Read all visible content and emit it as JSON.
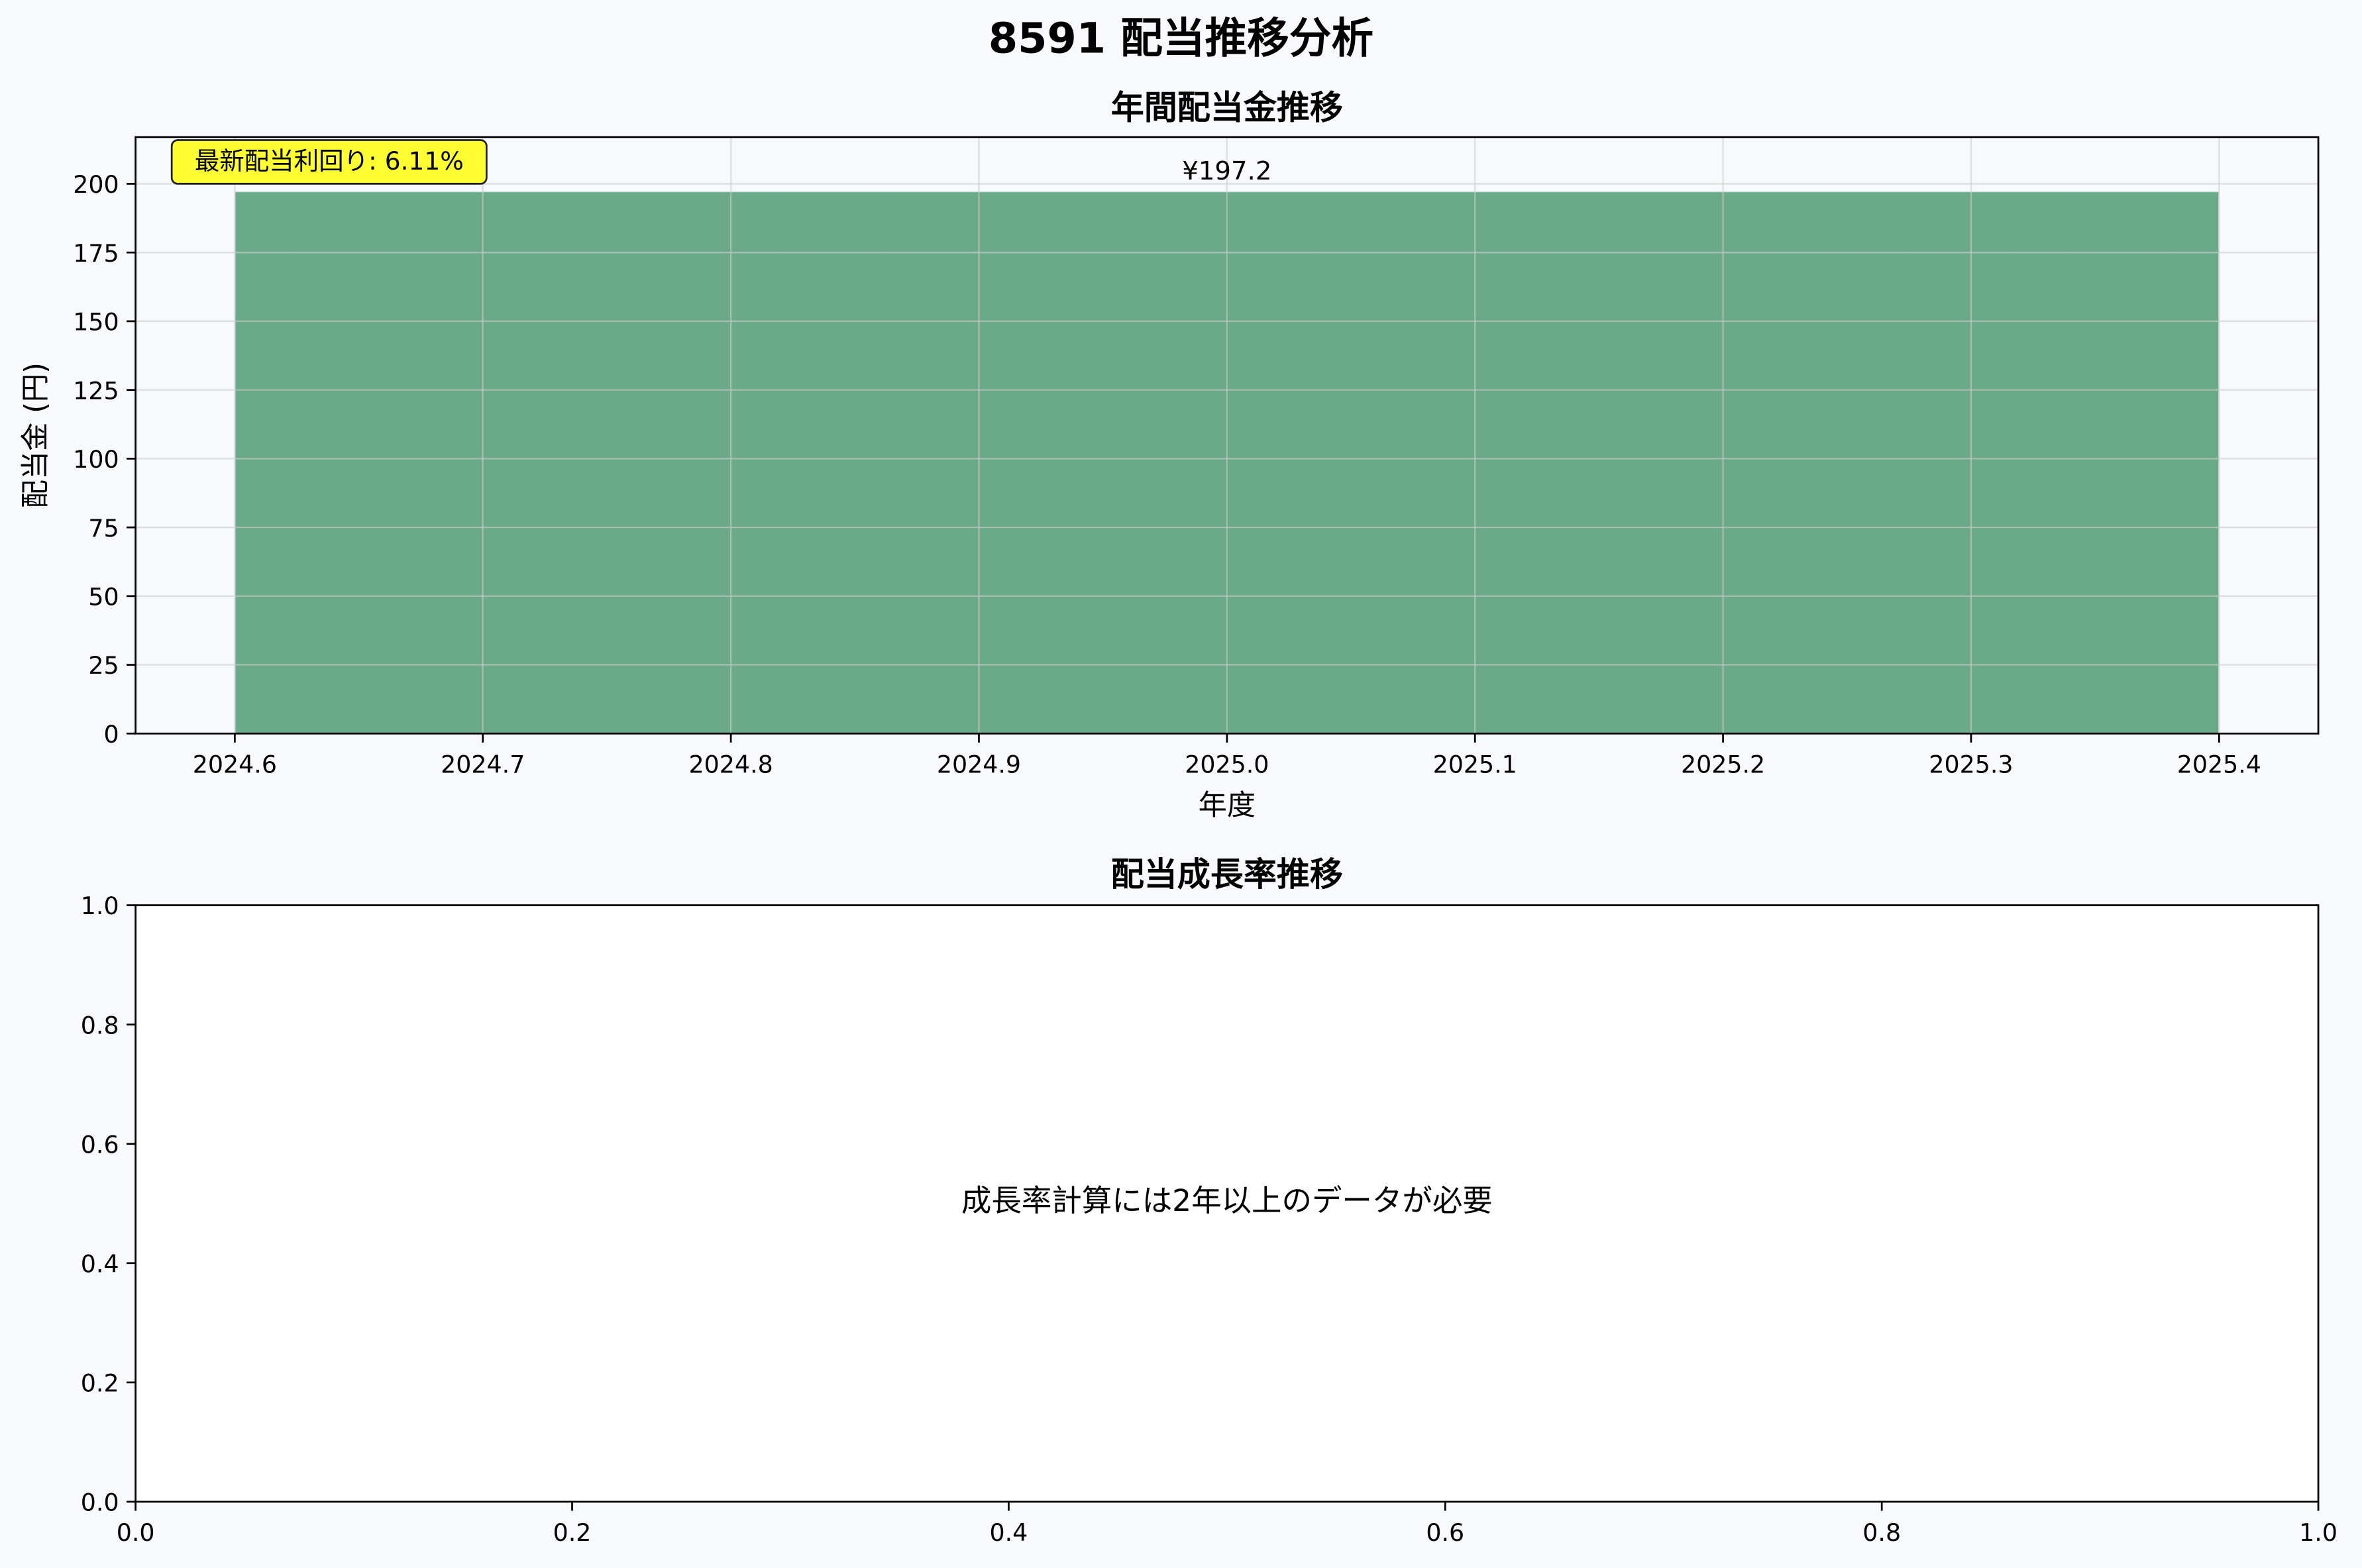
{
  "figure": {
    "suptitle": "8591 配当推移分析"
  },
  "chart_data": [
    {
      "type": "bar",
      "title": "年間配当金推移",
      "xlabel": "年度",
      "ylabel": "配当金 (円)",
      "x": [
        2025
      ],
      "values": [
        197.2
      ],
      "value_labels": [
        "¥197.2"
      ],
      "xlim": [
        2024.56,
        2025.44
      ],
      "ylim": [
        0,
        217
      ],
      "xticks": [
        2024.6,
        2024.7,
        2024.8,
        2024.9,
        2025.0,
        2025.1,
        2025.2,
        2025.3,
        2025.4
      ],
      "xtick_labels": [
        "2024.6",
        "2024.7",
        "2024.8",
        "2024.9",
        "2025.0",
        "2025.1",
        "2025.2",
        "2025.3",
        "2025.4"
      ],
      "yticks": [
        0,
        25,
        50,
        75,
        100,
        125,
        150,
        175,
        200
      ],
      "ytick_labels": [
        "0",
        "25",
        "50",
        "75",
        "100",
        "125",
        "150",
        "175",
        "200"
      ],
      "grid": true,
      "bar_color": "#6aaa88",
      "annotation": "最新配当利回り: 6.11%",
      "annotation_bg": "#ffff33",
      "bar_span": [
        2024.6,
        2025.4
      ]
    },
    {
      "type": "line",
      "title": "配当成長率推移",
      "xlim": [
        0,
        1
      ],
      "ylim": [
        0,
        1
      ],
      "xticks": [
        0,
        0.2,
        0.4,
        0.6,
        0.8,
        1.0
      ],
      "xtick_labels": [
        "0.0",
        "0.2",
        "0.4",
        "0.6",
        "0.8",
        "1.0"
      ],
      "yticks": [
        0,
        0.2,
        0.4,
        0.6,
        0.8,
        1.0
      ],
      "ytick_labels": [
        "0.0",
        "0.2",
        "0.4",
        "0.6",
        "0.8",
        "1.0"
      ],
      "grid": false,
      "series": [],
      "message": "成長率計算には2年以上のデータが必要"
    }
  ]
}
